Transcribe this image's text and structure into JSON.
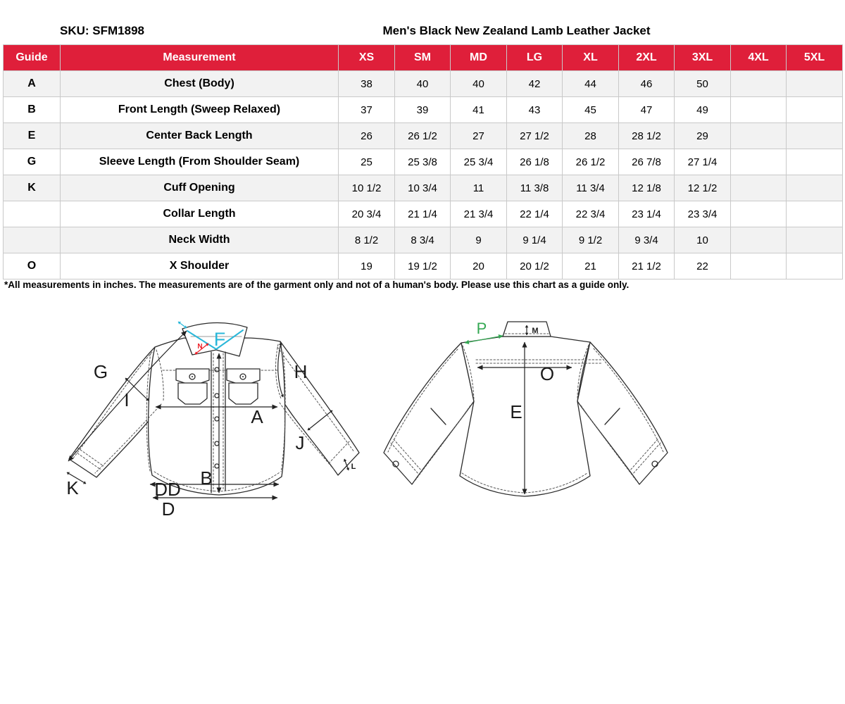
{
  "page": {
    "sku": "SKU: SFM1898",
    "title": "Men's Black New Zealand Lamb Leather Jacket",
    "footnote": "*All measurements in inches. The measurements are of the garment only and not of a human's body. Please use this chart as a guide only."
  },
  "size_table": {
    "columns": [
      "Guide",
      "Measurement",
      "XS",
      "SM",
      "MD",
      "LG",
      "XL",
      "2XL",
      "3XL",
      "4XL",
      "5XL"
    ],
    "rows": [
      {
        "guide": "A",
        "measurement": "Chest (Body)",
        "values": [
          "38",
          "40",
          "40",
          "42",
          "44",
          "46",
          "50",
          "",
          ""
        ]
      },
      {
        "guide": "B",
        "measurement": "Front Length (Sweep Relaxed)",
        "values": [
          "37",
          "39",
          "41",
          "43",
          "45",
          "47",
          "49",
          "",
          ""
        ]
      },
      {
        "guide": "E",
        "measurement": "Center Back Length",
        "values": [
          "26",
          "26 1/2",
          "27",
          "27 1/2",
          "28",
          "28 1/2",
          "29",
          "",
          ""
        ]
      },
      {
        "guide": "G",
        "measurement": "Sleeve Length (From Shoulder Seam)",
        "values": [
          "25",
          "25 3/8",
          "25 3/4",
          "26 1/8",
          "26 1/2",
          "26 7/8",
          "27 1/4",
          "",
          ""
        ]
      },
      {
        "guide": "K",
        "measurement": "Cuff Opening",
        "values": [
          "10 1/2",
          "10 3/4",
          "11",
          "11 3/8",
          "11 3/4",
          "12 1/8",
          "12 1/2",
          "",
          ""
        ]
      },
      {
        "guide": "",
        "measurement": "Collar Length",
        "values": [
          "20 3/4",
          "21 1/4",
          "21 3/4",
          "22 1/4",
          "22 3/4",
          "23 1/4",
          "23 3/4",
          "",
          ""
        ]
      },
      {
        "guide": "",
        "measurement": "Neck Width",
        "values": [
          "8 1/2",
          "8 3/4",
          "9",
          "9 1/4",
          "9 1/2",
          "9 3/4",
          "10",
          "",
          ""
        ]
      },
      {
        "guide": "O",
        "measurement": "X Shoulder",
        "values": [
          "19",
          "19 1/2",
          "20",
          "20 1/2",
          "21",
          "21 1/2",
          "22",
          "",
          ""
        ]
      }
    ]
  },
  "diagram": {
    "front_labels": {
      "G": "G",
      "I": "I",
      "F": "F",
      "N": "N",
      "H": "H",
      "A": "A",
      "J": "J",
      "B": "B",
      "K": "K",
      "L": "L",
      "DD": "DD",
      "D": "D"
    },
    "back_labels": {
      "P": "P",
      "M": "M",
      "O": "O",
      "E": "E"
    }
  },
  "colors": {
    "header_bg": "#df1f3a",
    "header_text": "#ffffff",
    "row_stripe": "#f2f2f2",
    "table_border": "#c9c9c9",
    "line": "#2b2b2b",
    "highlight_cyan": "#2ab7d9",
    "highlight_red": "#ee1c25",
    "highlight_green": "#34a853"
  }
}
